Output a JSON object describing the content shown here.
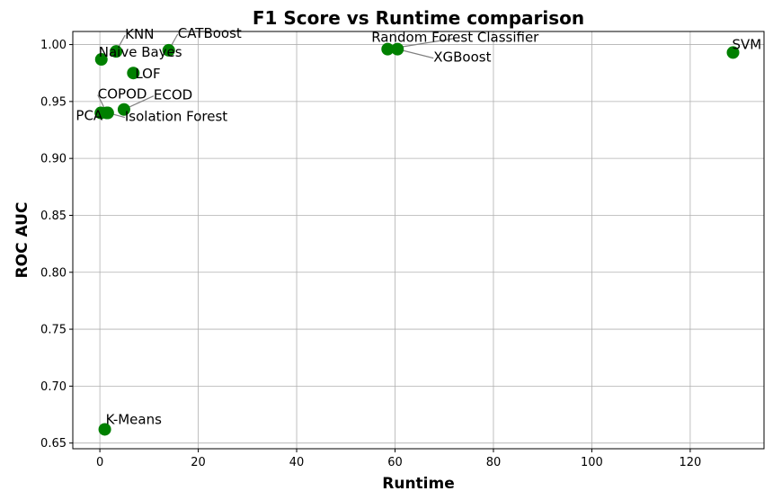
{
  "chart_data": {
    "type": "scatter",
    "title": "F1 Score vs Runtime comparison",
    "xlabel": "Runtime",
    "ylabel": "ROC AUC",
    "xlim": [
      -5.5,
      135
    ],
    "ylim": [
      0.645,
      1.0115
    ],
    "xticks": [
      0,
      20,
      40,
      60,
      80,
      100,
      120
    ],
    "yticks": [
      0.65,
      0.7,
      0.75,
      0.8,
      0.85,
      0.9,
      0.95,
      1.0
    ],
    "grid": true,
    "marker_color": "#008000",
    "points": [
      {
        "label": "KNN",
        "x": 3.3,
        "y": 0.994
      },
      {
        "label": "CATBoost",
        "x": 14.0,
        "y": 0.995
      },
      {
        "label": "Naive Bayes",
        "x": 0.3,
        "y": 0.987
      },
      {
        "label": "LOF",
        "x": 6.8,
        "y": 0.975
      },
      {
        "label": "COPOD",
        "x": 1.4,
        "y": 0.94
      },
      {
        "label": "ECOD",
        "x": 4.9,
        "y": 0.943
      },
      {
        "label": "PCA",
        "x": 0.2,
        "y": 0.94
      },
      {
        "label": "Isolation Forest",
        "x": 1.6,
        "y": 0.94
      },
      {
        "label": "Random Forest Classifier",
        "x": 58.5,
        "y": 0.996
      },
      {
        "label": "XGBoost",
        "x": 60.5,
        "y": 0.996
      },
      {
        "label": "SVM",
        "x": 128.7,
        "y": 0.993
      },
      {
        "label": "K-Means",
        "x": 1.0,
        "y": 0.662
      }
    ]
  }
}
